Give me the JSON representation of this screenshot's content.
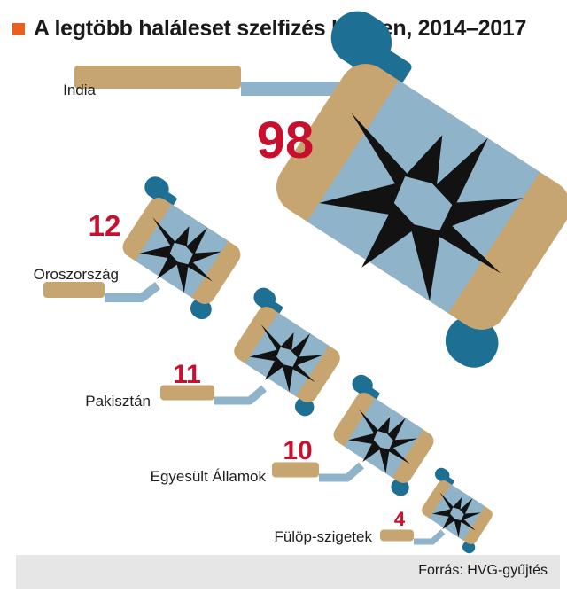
{
  "chart_data": {
    "type": "bar",
    "title": "A legtöbb haláleset szelfizés közben, 2014–2017",
    "categories": [
      "India",
      "Oroszország",
      "Pakisztán",
      "Egyesült Államok",
      "Fülöp-szigetek"
    ],
    "values": [
      98,
      12,
      11,
      10,
      4
    ],
    "source": "Forrás: HVG-gyűjtés"
  },
  "colors": {
    "accent": "#e8601c",
    "value_text": "#c8102e",
    "stick_tan": "#c7a570",
    "pole_blue": "#8fb3c9",
    "mount_blue": "#1e6f94",
    "phone_frame": "#c7a570",
    "phone_screen": "#8fb3c9",
    "crack": "#121212",
    "footer_bg": "#e6e6e6"
  },
  "icons": {
    "marker": "orange-square-icon",
    "phone": "cracked-phone-on-selfie-stick-icon"
  }
}
